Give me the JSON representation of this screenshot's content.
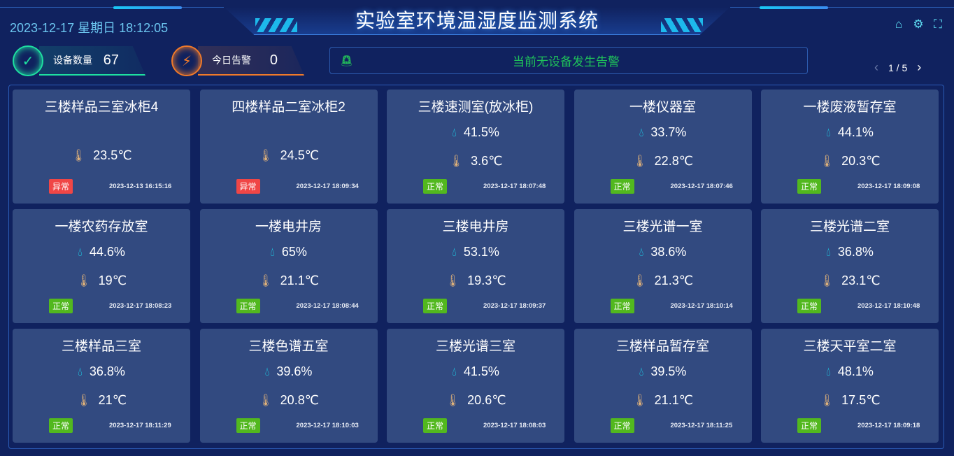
{
  "header": {
    "title": "实验室环境温湿度监测系统",
    "datetime": "2023-12-17 星期日 18:12:05"
  },
  "icons": [
    "home-icon",
    "gear-icon",
    "fullscreen-icon"
  ],
  "stats": [
    {
      "label": "设备数量",
      "value": "67",
      "color": "#1ee0a0"
    },
    {
      "label": "今日告警",
      "value": "0",
      "color": "#f07a2a"
    }
  ],
  "alarm": {
    "message": "当前无设备发生告警"
  },
  "pager": {
    "current": "1 / 5"
  },
  "colors": {
    "ok": "#52b81e",
    "bad": "#f04646",
    "humidity": "#19d9f0",
    "temperature": "#e0b27a"
  },
  "devices": [
    {
      "name": "三楼样品三室冰柜4",
      "humidity": null,
      "temperature": "23.5℃",
      "status": "异常",
      "time": "2023-12-13 16:15:16"
    },
    {
      "name": "四楼样品二室冰柜2",
      "humidity": null,
      "temperature": "24.5℃",
      "status": "异常",
      "time": "2023-12-17 18:09:34"
    },
    {
      "name": "三楼速测室(放冰柜)",
      "humidity": "41.5%",
      "temperature": "3.6℃",
      "status": "正常",
      "time": "2023-12-17 18:07:48"
    },
    {
      "name": "一楼仪器室",
      "humidity": "33.7%",
      "temperature": "22.8℃",
      "status": "正常",
      "time": "2023-12-17 18:07:46"
    },
    {
      "name": "一楼废液暂存室",
      "humidity": "44.1%",
      "temperature": "20.3℃",
      "status": "正常",
      "time": "2023-12-17 18:09:08"
    },
    {
      "name": "一楼农药存放室",
      "humidity": "44.6%",
      "temperature": "19℃",
      "status": "正常",
      "time": "2023-12-17 18:08:23"
    },
    {
      "name": "一楼电井房",
      "humidity": "65%",
      "temperature": "21.1℃",
      "status": "正常",
      "time": "2023-12-17 18:08:44"
    },
    {
      "name": "三楼电井房",
      "humidity": "53.1%",
      "temperature": "19.3℃",
      "status": "正常",
      "time": "2023-12-17 18:09:37"
    },
    {
      "name": "三楼光谱一室",
      "humidity": "38.6%",
      "temperature": "21.3℃",
      "status": "正常",
      "time": "2023-12-17 18:10:14"
    },
    {
      "name": "三楼光谱二室",
      "humidity": "36.8%",
      "temperature": "23.1℃",
      "status": "正常",
      "time": "2023-12-17 18:10:48"
    },
    {
      "name": "三楼样品三室",
      "humidity": "36.8%",
      "temperature": "21℃",
      "status": "正常",
      "time": "2023-12-17 18:11:29"
    },
    {
      "name": "三楼色谱五室",
      "humidity": "39.6%",
      "temperature": "20.8℃",
      "status": "正常",
      "time": "2023-12-17 18:10:03"
    },
    {
      "name": "三楼光谱三室",
      "humidity": "41.5%",
      "temperature": "20.6℃",
      "status": "正常",
      "time": "2023-12-17 18:08:03"
    },
    {
      "name": "三楼样品暂存室",
      "humidity": "39.5%",
      "temperature": "21.1℃",
      "status": "正常",
      "time": "2023-12-17 18:11:25"
    },
    {
      "name": "三楼天平室二室",
      "humidity": "48.1%",
      "temperature": "17.5℃",
      "status": "正常",
      "time": "2023-12-17 18:09:18"
    }
  ]
}
